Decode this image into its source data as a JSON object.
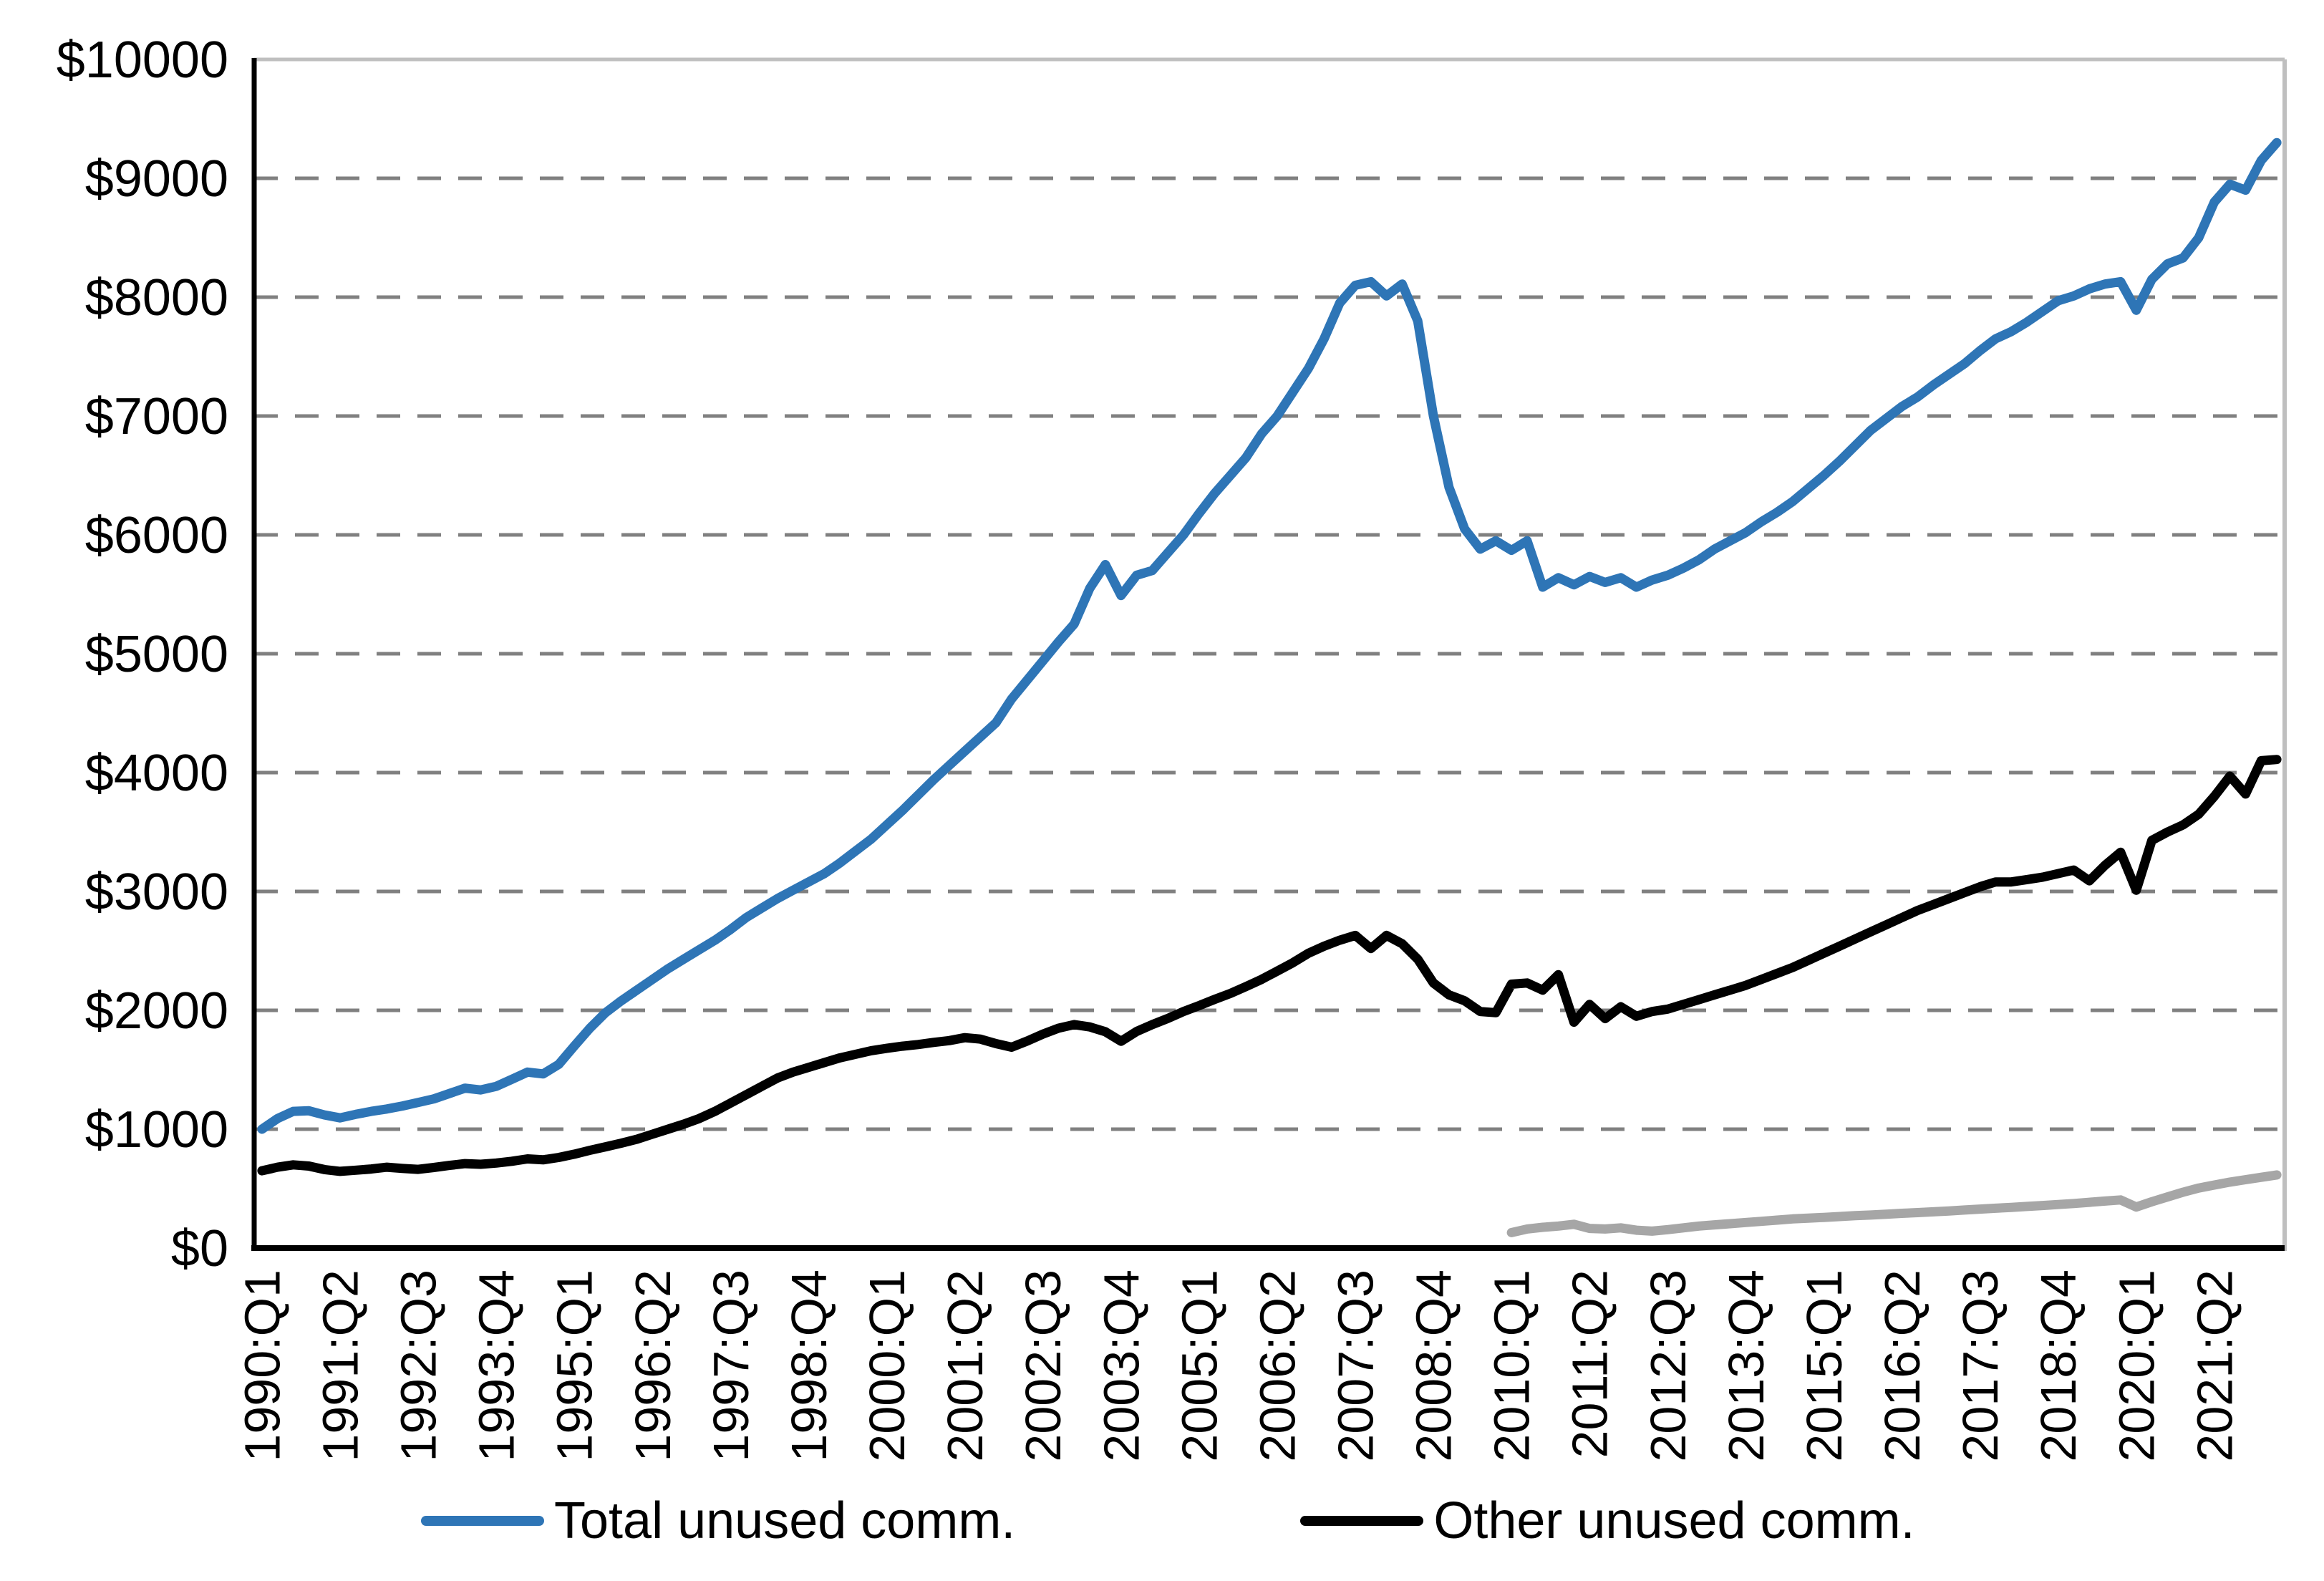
{
  "chart_data": {
    "type": "line",
    "title": "",
    "xlabel": "",
    "ylabel": "",
    "y_axis": {
      "min": 0,
      "max": 10000,
      "step": 1000,
      "tick_prefix": "$"
    },
    "y_tick_labels": [
      "$0",
      "$1000",
      "$2000",
      "$3000",
      "$4000",
      "$5000",
      "$6000",
      "$7000",
      "$8000",
      "$9000",
      "$10000"
    ],
    "x_tick_interval": 5,
    "x_tick_labels": [
      "1990:Q1",
      "1991:Q2",
      "1992:Q3",
      "1993:Q4",
      "1995:Q1",
      "1996:Q2",
      "1997:Q3",
      "1998:Q4",
      "2000:Q1",
      "2001:Q2",
      "2002:Q3",
      "2003:Q4",
      "2005:Q1",
      "2006:Q2",
      "2007:Q3",
      "2008:Q4",
      "2010:Q1",
      "2011:Q2",
      "2012:Q3",
      "2013:Q4",
      "2015:Q1",
      "2016:Q2",
      "2017:Q3",
      "2018:Q4",
      "2020:Q1",
      "2021:Q2"
    ],
    "grid": "horizontal-dashed",
    "gridline_color": "#808080",
    "border_color": "#BFBFBF",
    "axis_color": "#000000",
    "x": [
      "1990:Q1",
      "1990:Q2",
      "1990:Q3",
      "1990:Q4",
      "1991:Q1",
      "1991:Q2",
      "1991:Q3",
      "1991:Q4",
      "1992:Q1",
      "1992:Q2",
      "1992:Q3",
      "1992:Q4",
      "1993:Q1",
      "1993:Q2",
      "1993:Q3",
      "1993:Q4",
      "1994:Q1",
      "1994:Q2",
      "1994:Q3",
      "1994:Q4",
      "1995:Q1",
      "1995:Q2",
      "1995:Q3",
      "1995:Q4",
      "1996:Q1",
      "1996:Q2",
      "1996:Q3",
      "1996:Q4",
      "1997:Q1",
      "1997:Q2",
      "1997:Q3",
      "1997:Q4",
      "1998:Q1",
      "1998:Q2",
      "1998:Q3",
      "1998:Q4",
      "1999:Q1",
      "1999:Q2",
      "1999:Q3",
      "1999:Q4",
      "2000:Q1",
      "2000:Q2",
      "2000:Q3",
      "2000:Q4",
      "2001:Q1",
      "2001:Q2",
      "2001:Q3",
      "2001:Q4",
      "2002:Q1",
      "2002:Q2",
      "2002:Q3",
      "2002:Q4",
      "2003:Q1",
      "2003:Q2",
      "2003:Q3",
      "2003:Q4",
      "2004:Q1",
      "2004:Q2",
      "2004:Q3",
      "2004:Q4",
      "2005:Q1",
      "2005:Q2",
      "2005:Q3",
      "2005:Q4",
      "2006:Q1",
      "2006:Q2",
      "2006:Q3",
      "2006:Q4",
      "2007:Q1",
      "2007:Q2",
      "2007:Q3",
      "2007:Q4",
      "2008:Q1",
      "2008:Q2",
      "2008:Q3",
      "2008:Q4",
      "2009:Q1",
      "2009:Q2",
      "2009:Q3",
      "2009:Q4",
      "2010:Q1",
      "2010:Q2",
      "2010:Q3",
      "2010:Q4",
      "2011:Q1",
      "2011:Q2",
      "2011:Q3",
      "2011:Q4",
      "2012:Q1",
      "2012:Q2",
      "2012:Q3",
      "2012:Q4",
      "2013:Q1",
      "2013:Q2",
      "2013:Q3",
      "2013:Q4",
      "2014:Q1",
      "2014:Q2",
      "2014:Q3",
      "2014:Q4",
      "2015:Q1",
      "2015:Q2",
      "2015:Q3",
      "2015:Q4",
      "2016:Q1",
      "2016:Q2",
      "2016:Q3",
      "2016:Q4",
      "2017:Q1",
      "2017:Q2",
      "2017:Q3",
      "2017:Q4",
      "2018:Q1",
      "2018:Q2",
      "2018:Q3",
      "2018:Q4",
      "2019:Q1",
      "2019:Q2",
      "2019:Q3",
      "2019:Q4",
      "2020:Q1",
      "2020:Q2",
      "2020:Q3",
      "2020:Q4",
      "2021:Q1",
      "2021:Q2",
      "2021:Q3",
      "2021:Q4",
      "2022:Q1",
      "2022:Q2"
    ],
    "series": [
      {
        "name": "Total unused comm.",
        "color": "#2E75B6",
        "in_legend": true,
        "start_index": 0,
        "values": [
          1000,
          1090,
          1150,
          1155,
          1120,
          1095,
          1125,
          1150,
          1170,
          1195,
          1225,
          1255,
          1300,
          1345,
          1330,
          1360,
          1420,
          1480,
          1465,
          1545,
          1700,
          1850,
          1980,
          2080,
          2170,
          2260,
          2350,
          2430,
          2510,
          2590,
          2680,
          2780,
          2860,
          2940,
          3010,
          3080,
          3150,
          3240,
          3340,
          3440,
          3560,
          3680,
          3810,
          3940,
          4060,
          4180,
          4300,
          4420,
          4620,
          4780,
          4940,
          5100,
          5250,
          5550,
          5750,
          5490,
          5660,
          5700,
          5850,
          6000,
          6180,
          6350,
          6500,
          6650,
          6850,
          7000,
          7200,
          7400,
          7650,
          7950,
          8100,
          8130,
          8010,
          8110,
          7800,
          7000,
          6400,
          6050,
          5880,
          5950,
          5870,
          5950,
          5560,
          5640,
          5580,
          5650,
          5600,
          5640,
          5560,
          5620,
          5660,
          5720,
          5790,
          5880,
          5950,
          6020,
          6110,
          6190,
          6280,
          6390,
          6500,
          6620,
          6750,
          6880,
          6980,
          7080,
          7160,
          7260,
          7350,
          7440,
          7550,
          7650,
          7710,
          7790,
          7880,
          7970,
          8010,
          8070,
          8110,
          8130,
          7890,
          8150,
          8280,
          8330,
          8500,
          8800,
          8950,
          8900,
          9150,
          9300
        ]
      },
      {
        "name": "Other unused comm.",
        "color": "#000000",
        "in_legend": true,
        "start_index": 0,
        "values": [
          650,
          680,
          700,
          690,
          660,
          645,
          655,
          665,
          680,
          670,
          662,
          678,
          695,
          710,
          705,
          715,
          730,
          750,
          742,
          762,
          790,
          822,
          852,
          882,
          915,
          958,
          1000,
          1042,
          1090,
          1150,
          1220,
          1290,
          1360,
          1430,
          1480,
          1520,
          1560,
          1600,
          1630,
          1660,
          1680,
          1698,
          1712,
          1730,
          1745,
          1770,
          1758,
          1720,
          1690,
          1742,
          1800,
          1850,
          1880,
          1860,
          1820,
          1740,
          1822,
          1880,
          1932,
          1990,
          2040,
          2092,
          2142,
          2200,
          2260,
          2330,
          2400,
          2480,
          2540,
          2590,
          2630,
          2520,
          2630,
          2560,
          2430,
          2230,
          2130,
          2080,
          1990,
          1980,
          2220,
          2230,
          2170,
          2300,
          1900,
          2050,
          1930,
          2030,
          1950,
          1990,
          2010,
          2050,
          2090,
          2130,
          2170,
          2210,
          2260,
          2310,
          2360,
          2420,
          2480,
          2540,
          2600,
          2660,
          2720,
          2780,
          2840,
          2890,
          2940,
          2990,
          3040,
          3080,
          3080,
          3100,
          3120,
          3150,
          3180,
          3090,
          3220,
          3330,
          3010,
          3430,
          3500,
          3560,
          3650,
          3800,
          3970,
          3820,
          4100,
          4110
        ]
      },
      {
        "name": "",
        "color": "#A6A6A6",
        "in_legend": false,
        "start_index": 80,
        "values": [
          130,
          160,
          175,
          185,
          200,
          165,
          160,
          170,
          150,
          142,
          155,
          170,
          185,
          195,
          205,
          215,
          225,
          235,
          245,
          252,
          258,
          265,
          272,
          278,
          285,
          292,
          298,
          305,
          312,
          320,
          328,
          335,
          342,
          350,
          358,
          366,
          375,
          385,
          395,
          405,
          345,
          390,
          430,
          470,
          505,
          530,
          555,
          575,
          595,
          615
        ]
      }
    ],
    "legend": {
      "position": "bottom",
      "entries": [
        "Total unused comm.",
        "Other unused comm."
      ]
    }
  }
}
